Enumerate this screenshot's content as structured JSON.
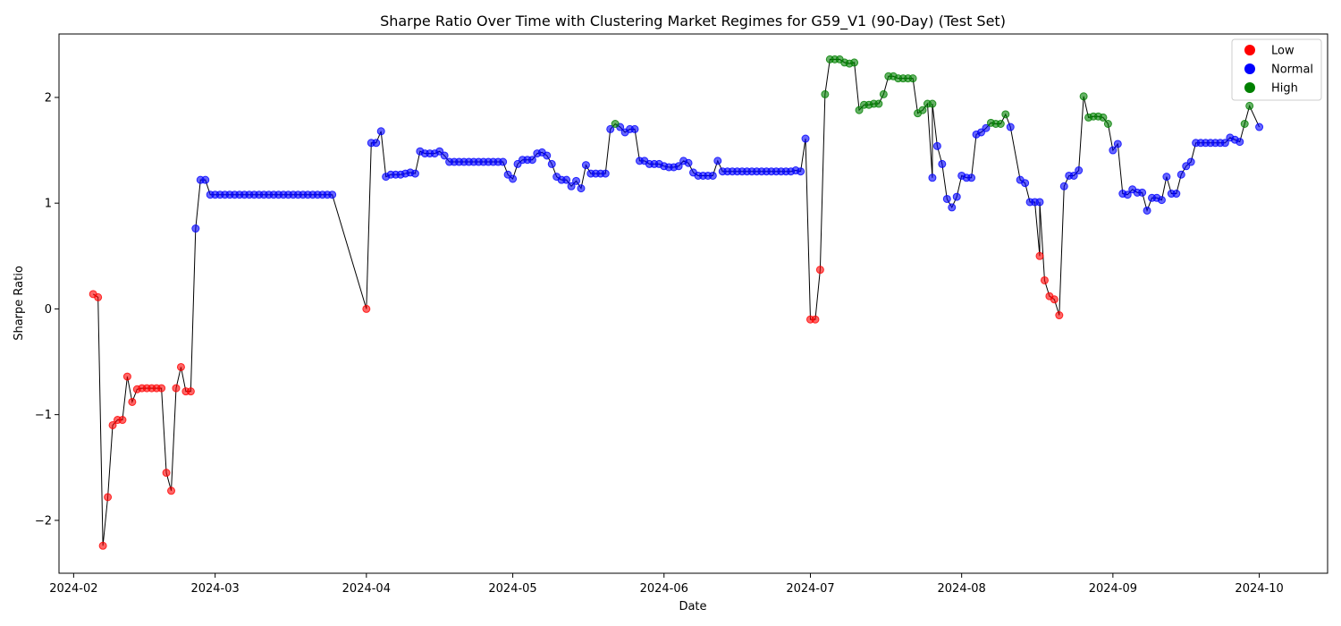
{
  "chart_data": {
    "type": "scatter",
    "title": "Sharpe Ratio Over Time with Clustering Market Regimes for G59_V1 (90-Day) (Test Set)",
    "xlabel": "Date",
    "ylabel": "Sharpe Ratio",
    "xlim": [
      "2024-01-29",
      "2024-10-15"
    ],
    "ylim": [
      -2.5,
      2.6
    ],
    "x_ticks": [
      "2024-02-01",
      "2024-03-01",
      "2024-04-01",
      "2024-05-01",
      "2024-06-01",
      "2024-07-01",
      "2024-08-01",
      "2024-09-01",
      "2024-10-01"
    ],
    "x_tick_labels": [
      "2024-02",
      "2024-03",
      "2024-04",
      "2024-05",
      "2024-06",
      "2024-07",
      "2024-08",
      "2024-09",
      "2024-10"
    ],
    "y_ticks": [
      -2,
      -1,
      0,
      1,
      2
    ],
    "y_tick_labels": [
      "−2",
      "−1",
      "0",
      "1",
      "2"
    ],
    "grid": false,
    "legend_position": "top-right",
    "colors": {
      "Low": "#ff0000",
      "Normal": "#0000ff",
      "High": "#008000",
      "line": "#000000"
    },
    "legend": [
      {
        "label": "Low",
        "color": "#ff0000"
      },
      {
        "label": "Normal",
        "color": "#0000ff"
      },
      {
        "label": "High",
        "color": "#008000"
      }
    ],
    "series": [
      {
        "name": "Low",
        "points": [
          [
            "2024-02-05",
            0.14
          ],
          [
            "2024-02-06",
            0.11
          ],
          [
            "2024-02-07",
            -2.24
          ],
          [
            "2024-02-08",
            -1.78
          ],
          [
            "2024-02-09",
            -1.1
          ],
          [
            "2024-02-10",
            -1.05
          ],
          [
            "2024-02-11",
            -1.05
          ],
          [
            "2024-02-12",
            -0.64
          ],
          [
            "2024-02-13",
            -0.88
          ],
          [
            "2024-02-14",
            -0.76
          ],
          [
            "2024-02-15",
            -0.75
          ],
          [
            "2024-02-16",
            -0.75
          ],
          [
            "2024-02-17",
            -0.75
          ],
          [
            "2024-02-18",
            -0.75
          ],
          [
            "2024-02-19",
            -0.75
          ],
          [
            "2024-02-20",
            -1.55
          ],
          [
            "2024-02-21",
            -1.72
          ],
          [
            "2024-02-22",
            -0.75
          ],
          [
            "2024-02-23",
            -0.55
          ],
          [
            "2024-02-24",
            -0.78
          ],
          [
            "2024-02-25",
            -0.78
          ],
          [
            "2024-04-01",
            0.0
          ],
          [
            "2024-07-01",
            -0.1
          ],
          [
            "2024-07-02",
            -0.1
          ],
          [
            "2024-07-03",
            0.37
          ],
          [
            "2024-08-17",
            0.5
          ],
          [
            "2024-08-18",
            0.27
          ],
          [
            "2024-08-19",
            0.12
          ],
          [
            "2024-08-20",
            0.09
          ],
          [
            "2024-08-21",
            -0.06
          ]
        ]
      },
      {
        "name": "Normal",
        "points": [
          [
            "2024-02-26",
            0.76
          ],
          [
            "2024-02-27",
            1.22
          ],
          [
            "2024-02-28",
            1.22
          ],
          [
            "2024-02-29",
            1.08
          ],
          [
            "2024-03-01",
            1.08
          ],
          [
            "2024-03-02",
            1.08
          ],
          [
            "2024-03-03",
            1.08
          ],
          [
            "2024-03-04",
            1.08
          ],
          [
            "2024-03-05",
            1.08
          ],
          [
            "2024-03-06",
            1.08
          ],
          [
            "2024-03-07",
            1.08
          ],
          [
            "2024-03-08",
            1.08
          ],
          [
            "2024-03-09",
            1.08
          ],
          [
            "2024-03-10",
            1.08
          ],
          [
            "2024-03-11",
            1.08
          ],
          [
            "2024-03-12",
            1.08
          ],
          [
            "2024-03-13",
            1.08
          ],
          [
            "2024-03-14",
            1.08
          ],
          [
            "2024-03-15",
            1.08
          ],
          [
            "2024-03-16",
            1.08
          ],
          [
            "2024-03-17",
            1.08
          ],
          [
            "2024-03-18",
            1.08
          ],
          [
            "2024-03-19",
            1.08
          ],
          [
            "2024-03-20",
            1.08
          ],
          [
            "2024-03-21",
            1.08
          ],
          [
            "2024-03-22",
            1.08
          ],
          [
            "2024-03-23",
            1.08
          ],
          [
            "2024-03-24",
            1.08
          ],
          [
            "2024-03-25",
            1.08
          ],
          [
            "2024-04-02",
            1.57
          ],
          [
            "2024-04-03",
            1.57
          ],
          [
            "2024-04-04",
            1.68
          ],
          [
            "2024-04-05",
            1.25
          ],
          [
            "2024-04-06",
            1.27
          ],
          [
            "2024-04-07",
            1.27
          ],
          [
            "2024-04-08",
            1.27
          ],
          [
            "2024-04-09",
            1.28
          ],
          [
            "2024-04-10",
            1.29
          ],
          [
            "2024-04-11",
            1.28
          ],
          [
            "2024-04-12",
            1.49
          ],
          [
            "2024-04-13",
            1.47
          ],
          [
            "2024-04-14",
            1.47
          ],
          [
            "2024-04-15",
            1.47
          ],
          [
            "2024-04-16",
            1.49
          ],
          [
            "2024-04-17",
            1.45
          ],
          [
            "2024-04-18",
            1.39
          ],
          [
            "2024-04-19",
            1.39
          ],
          [
            "2024-04-20",
            1.39
          ],
          [
            "2024-04-21",
            1.39
          ],
          [
            "2024-04-22",
            1.39
          ],
          [
            "2024-04-23",
            1.39
          ],
          [
            "2024-04-24",
            1.39
          ],
          [
            "2024-04-25",
            1.39
          ],
          [
            "2024-04-26",
            1.39
          ],
          [
            "2024-04-27",
            1.39
          ],
          [
            "2024-04-28",
            1.39
          ],
          [
            "2024-04-29",
            1.39
          ],
          [
            "2024-04-30",
            1.27
          ],
          [
            "2024-05-01",
            1.23
          ],
          [
            "2024-05-02",
            1.37
          ],
          [
            "2024-05-03",
            1.41
          ],
          [
            "2024-05-04",
            1.41
          ],
          [
            "2024-05-05",
            1.41
          ],
          [
            "2024-05-06",
            1.47
          ],
          [
            "2024-05-07",
            1.48
          ],
          [
            "2024-05-08",
            1.45
          ],
          [
            "2024-05-09",
            1.37
          ],
          [
            "2024-05-10",
            1.25
          ],
          [
            "2024-05-11",
            1.22
          ],
          [
            "2024-05-12",
            1.22
          ],
          [
            "2024-05-13",
            1.16
          ],
          [
            "2024-05-14",
            1.21
          ],
          [
            "2024-05-15",
            1.14
          ],
          [
            "2024-05-16",
            1.36
          ],
          [
            "2024-05-17",
            1.28
          ],
          [
            "2024-05-18",
            1.28
          ],
          [
            "2024-05-19",
            1.28
          ],
          [
            "2024-05-20",
            1.28
          ],
          [
            "2024-05-21",
            1.7
          ],
          [
            "2024-05-23",
            1.72
          ],
          [
            "2024-05-24",
            1.67
          ],
          [
            "2024-05-25",
            1.7
          ],
          [
            "2024-05-26",
            1.7
          ],
          [
            "2024-05-27",
            1.4
          ],
          [
            "2024-05-28",
            1.4
          ],
          [
            "2024-05-29",
            1.37
          ],
          [
            "2024-05-30",
            1.37
          ],
          [
            "2024-05-31",
            1.37
          ],
          [
            "2024-06-01",
            1.35
          ],
          [
            "2024-06-02",
            1.34
          ],
          [
            "2024-06-03",
            1.34
          ],
          [
            "2024-06-04",
            1.35
          ],
          [
            "2024-06-05",
            1.4
          ],
          [
            "2024-06-06",
            1.38
          ],
          [
            "2024-06-07",
            1.29
          ],
          [
            "2024-06-08",
            1.26
          ],
          [
            "2024-06-09",
            1.26
          ],
          [
            "2024-06-10",
            1.26
          ],
          [
            "2024-06-11",
            1.26
          ],
          [
            "2024-06-12",
            1.4
          ],
          [
            "2024-06-13",
            1.3
          ],
          [
            "2024-06-14",
            1.3
          ],
          [
            "2024-06-15",
            1.3
          ],
          [
            "2024-06-16",
            1.3
          ],
          [
            "2024-06-17",
            1.3
          ],
          [
            "2024-06-18",
            1.3
          ],
          [
            "2024-06-19",
            1.3
          ],
          [
            "2024-06-20",
            1.3
          ],
          [
            "2024-06-21",
            1.3
          ],
          [
            "2024-06-22",
            1.3
          ],
          [
            "2024-06-23",
            1.3
          ],
          [
            "2024-06-24",
            1.3
          ],
          [
            "2024-06-25",
            1.3
          ],
          [
            "2024-06-26",
            1.3
          ],
          [
            "2024-06-27",
            1.3
          ],
          [
            "2024-06-28",
            1.31
          ],
          [
            "2024-06-29",
            1.3
          ],
          [
            "2024-06-30",
            1.61
          ],
          [
            "2024-07-26",
            1.24
          ],
          [
            "2024-07-27",
            1.54
          ],
          [
            "2024-07-28",
            1.37
          ],
          [
            "2024-07-29",
            1.04
          ],
          [
            "2024-07-30",
            0.96
          ],
          [
            "2024-07-31",
            1.06
          ],
          [
            "2024-08-01",
            1.26
          ],
          [
            "2024-08-02",
            1.24
          ],
          [
            "2024-08-03",
            1.24
          ],
          [
            "2024-08-04",
            1.65
          ],
          [
            "2024-08-05",
            1.67
          ],
          [
            "2024-08-06",
            1.71
          ],
          [
            "2024-08-11",
            1.72
          ],
          [
            "2024-08-13",
            1.22
          ],
          [
            "2024-08-14",
            1.19
          ],
          [
            "2024-08-15",
            1.01
          ],
          [
            "2024-08-16",
            1.01
          ],
          [
            "2024-08-17",
            1.01
          ],
          [
            "2024-08-22",
            1.16
          ],
          [
            "2024-08-23",
            1.26
          ],
          [
            "2024-08-24",
            1.26
          ],
          [
            "2024-08-25",
            1.31
          ],
          [
            "2024-09-01",
            1.5
          ],
          [
            "2024-09-02",
            1.56
          ],
          [
            "2024-09-03",
            1.09
          ],
          [
            "2024-09-04",
            1.08
          ],
          [
            "2024-09-05",
            1.13
          ],
          [
            "2024-09-06",
            1.1
          ],
          [
            "2024-09-07",
            1.1
          ],
          [
            "2024-09-08",
            0.93
          ],
          [
            "2024-09-09",
            1.05
          ],
          [
            "2024-09-10",
            1.05
          ],
          [
            "2024-09-11",
            1.03
          ],
          [
            "2024-09-12",
            1.25
          ],
          [
            "2024-09-13",
            1.09
          ],
          [
            "2024-09-14",
            1.09
          ],
          [
            "2024-09-15",
            1.27
          ],
          [
            "2024-09-16",
            1.35
          ],
          [
            "2024-09-17",
            1.39
          ],
          [
            "2024-09-18",
            1.57
          ],
          [
            "2024-09-19",
            1.57
          ],
          [
            "2024-09-20",
            1.57
          ],
          [
            "2024-09-21",
            1.57
          ],
          [
            "2024-09-22",
            1.57
          ],
          [
            "2024-09-23",
            1.57
          ],
          [
            "2024-09-24",
            1.57
          ],
          [
            "2024-09-25",
            1.62
          ],
          [
            "2024-09-26",
            1.6
          ],
          [
            "2024-09-27",
            1.58
          ],
          [
            "2024-10-01",
            1.72
          ]
        ]
      },
      {
        "name": "High",
        "points": [
          [
            "2024-05-22",
            1.75
          ],
          [
            "2024-07-04",
            2.03
          ],
          [
            "2024-07-05",
            2.36
          ],
          [
            "2024-07-06",
            2.36
          ],
          [
            "2024-07-07",
            2.36
          ],
          [
            "2024-07-08",
            2.33
          ],
          [
            "2024-07-09",
            2.32
          ],
          [
            "2024-07-10",
            2.33
          ],
          [
            "2024-07-11",
            1.88
          ],
          [
            "2024-07-12",
            1.93
          ],
          [
            "2024-07-13",
            1.93
          ],
          [
            "2024-07-14",
            1.94
          ],
          [
            "2024-07-15",
            1.94
          ],
          [
            "2024-07-16",
            2.03
          ],
          [
            "2024-07-17",
            2.2
          ],
          [
            "2024-07-18",
            2.2
          ],
          [
            "2024-07-19",
            2.18
          ],
          [
            "2024-07-20",
            2.18
          ],
          [
            "2024-07-21",
            2.18
          ],
          [
            "2024-07-22",
            2.18
          ],
          [
            "2024-07-23",
            1.85
          ],
          [
            "2024-07-24",
            1.88
          ],
          [
            "2024-07-25",
            1.94
          ],
          [
            "2024-07-26",
            1.94
          ],
          [
            "2024-08-07",
            1.76
          ],
          [
            "2024-08-08",
            1.75
          ],
          [
            "2024-08-09",
            1.75
          ],
          [
            "2024-08-10",
            1.84
          ],
          [
            "2024-08-26",
            2.01
          ],
          [
            "2024-08-27",
            1.81
          ],
          [
            "2024-08-28",
            1.82
          ],
          [
            "2024-08-29",
            1.82
          ],
          [
            "2024-08-30",
            1.81
          ],
          [
            "2024-08-31",
            1.75
          ],
          [
            "2024-09-28",
            1.75
          ],
          [
            "2024-09-29",
            1.92
          ]
        ]
      }
    ]
  }
}
